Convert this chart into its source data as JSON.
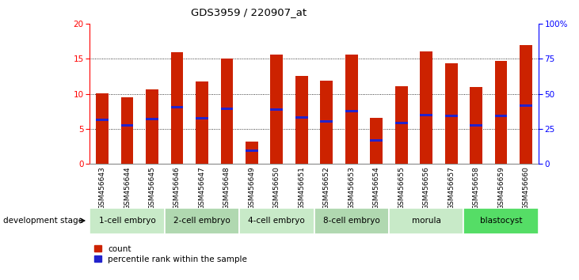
{
  "title": "GDS3959 / 220907_at",
  "samples": [
    "GSM456643",
    "GSM456644",
    "GSM456645",
    "GSM456646",
    "GSM456647",
    "GSM456648",
    "GSM456649",
    "GSM456650",
    "GSM456651",
    "GSM456652",
    "GSM456653",
    "GSM456654",
    "GSM456655",
    "GSM456656",
    "GSM456657",
    "GSM456658",
    "GSM456659",
    "GSM456660"
  ],
  "counts": [
    10.1,
    9.5,
    10.6,
    15.9,
    11.8,
    15.0,
    3.2,
    15.6,
    12.5,
    11.9,
    15.6,
    6.6,
    11.1,
    16.1,
    14.4,
    11.0,
    14.7,
    17.0
  ],
  "percentile_ranks": [
    6.3,
    5.5,
    6.4,
    8.1,
    6.5,
    7.9,
    1.9,
    7.8,
    6.6,
    6.1,
    7.5,
    3.3,
    5.8,
    7.0,
    6.8,
    5.5,
    6.8,
    8.3
  ],
  "groups": [
    {
      "label": "1-cell embryo",
      "start": 0,
      "end": 3
    },
    {
      "label": "2-cell embryo",
      "start": 3,
      "end": 6
    },
    {
      "label": "4-cell embryo",
      "start": 6,
      "end": 9
    },
    {
      "label": "8-cell embryo",
      "start": 9,
      "end": 12
    },
    {
      "label": "morula",
      "start": 12,
      "end": 15
    },
    {
      "label": "blastocyst",
      "start": 15,
      "end": 18
    }
  ],
  "group_colors": [
    "#c8eac8",
    "#b0d8b0",
    "#c8eac8",
    "#b0d8b0",
    "#c8eac8",
    "#55dd66"
  ],
  "bar_color": "#cc2200",
  "marker_color": "#2222cc",
  "ylim_left": [
    0,
    20
  ],
  "ylim_right": [
    0,
    100
  ],
  "yticks_left": [
    0,
    5,
    10,
    15,
    20
  ],
  "yticks_right": [
    0,
    25,
    50,
    75,
    100
  ],
  "background_color": "#ffffff",
  "bar_width": 0.5,
  "tick_bg_color": "#d8d8d8",
  "sep_color": "#404040"
}
